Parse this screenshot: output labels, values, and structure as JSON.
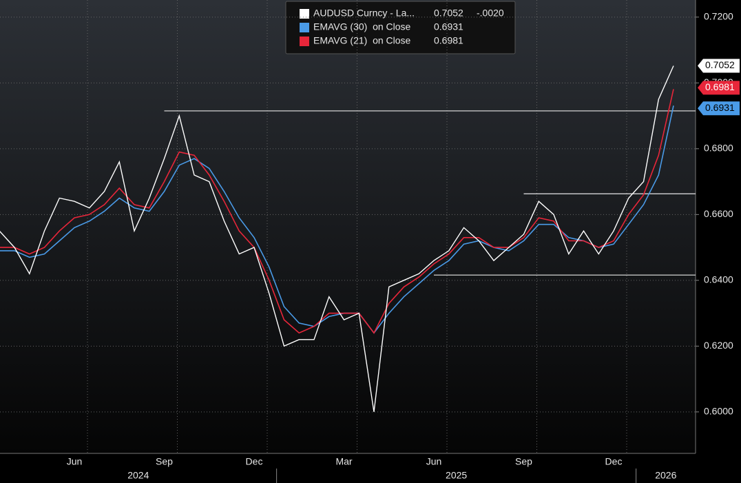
{
  "chart_data": {
    "type": "line",
    "categories": [
      null,
      null,
      null,
      null,
      null,
      "Jun",
      null,
      null,
      null,
      null,
      null,
      "Sep",
      null,
      null,
      null,
      null,
      null,
      "Dec",
      null,
      null,
      null,
      null,
      null,
      "Mar",
      null,
      null,
      null,
      null,
      null,
      "Jun",
      null,
      null,
      null,
      null,
      null,
      "Sep",
      null,
      null,
      null,
      null,
      null,
      "Dec",
      null,
      null,
      null,
      null
    ],
    "x_groups": [
      {
        "label": "2024",
        "first": 0,
        "last": 18
      },
      {
        "label": "2025",
        "first": 19,
        "last": 42
      },
      {
        "label": "2026",
        "first": 43,
        "last": 45
      }
    ],
    "series": [
      {
        "name": "AUDUSD Curncy - La...",
        "color": "#ffffff",
        "change": {
          "value": -0.002,
          "label": "-.0020"
        },
        "values": [
          0.655,
          0.65,
          0.642,
          0.655,
          0.665,
          0.664,
          0.662,
          0.667,
          0.676,
          0.655,
          0.665,
          0.677,
          0.69,
          0.672,
          0.67,
          0.658,
          0.648,
          0.65,
          0.636,
          0.62,
          0.622,
          0.622,
          0.635,
          0.628,
          0.63,
          0.6,
          0.638,
          0.64,
          0.642,
          0.646,
          0.649,
          0.656,
          0.652,
          0.646,
          0.65,
          0.654,
          0.664,
          0.66,
          0.648,
          0.655,
          0.648,
          0.655,
          0.665,
          0.67,
          0.695,
          0.7052
        ]
      },
      {
        "name": "EMAVG (30)  on Close",
        "color": "#4a9be8",
        "values": [
          0.649,
          0.649,
          0.647,
          0.648,
          0.652,
          0.656,
          0.658,
          0.661,
          0.665,
          0.662,
          0.661,
          0.667,
          0.675,
          0.677,
          0.674,
          0.667,
          0.659,
          0.653,
          0.644,
          0.632,
          0.627,
          0.626,
          0.629,
          0.63,
          0.63,
          0.624,
          0.63,
          0.635,
          0.639,
          0.643,
          0.646,
          0.651,
          0.652,
          0.65,
          0.649,
          0.652,
          0.657,
          0.657,
          0.653,
          0.652,
          0.65,
          0.651,
          0.657,
          0.663,
          0.672,
          0.6931
        ]
      },
      {
        "name": "EMAVG (21)  on Close",
        "color": "#e8263a",
        "values": [
          0.65,
          0.65,
          0.648,
          0.65,
          0.655,
          0.659,
          0.66,
          0.663,
          0.668,
          0.663,
          0.662,
          0.67,
          0.679,
          0.678,
          0.672,
          0.664,
          0.655,
          0.65,
          0.64,
          0.628,
          0.624,
          0.626,
          0.63,
          0.63,
          0.63,
          0.624,
          0.633,
          0.638,
          0.641,
          0.645,
          0.648,
          0.653,
          0.653,
          0.65,
          0.65,
          0.653,
          0.659,
          0.658,
          0.652,
          0.652,
          0.65,
          0.652,
          0.66,
          0.666,
          0.678,
          0.6981
        ]
      }
    ],
    "reference_lines": [
      {
        "value": 0.6915,
        "start": 11
      },
      {
        "value": 0.6663,
        "start": 35
      },
      {
        "value": 0.6416,
        "start": 29
      }
    ],
    "ylim": [
      0.5874,
      0.7252
    ],
    "yticks": [
      {
        "value": 0.6,
        "label": "0.6000"
      },
      {
        "value": 0.62,
        "label": "0.6200"
      },
      {
        "value": 0.64,
        "label": "0.6400"
      },
      {
        "value": 0.66,
        "label": "0.6600"
      },
      {
        "value": 0.68,
        "label": "0.6800"
      },
      {
        "value": 0.7,
        "label": "0.7000"
      },
      {
        "value": 0.72,
        "label": "0.7200"
      }
    ],
    "grid": true
  }
}
